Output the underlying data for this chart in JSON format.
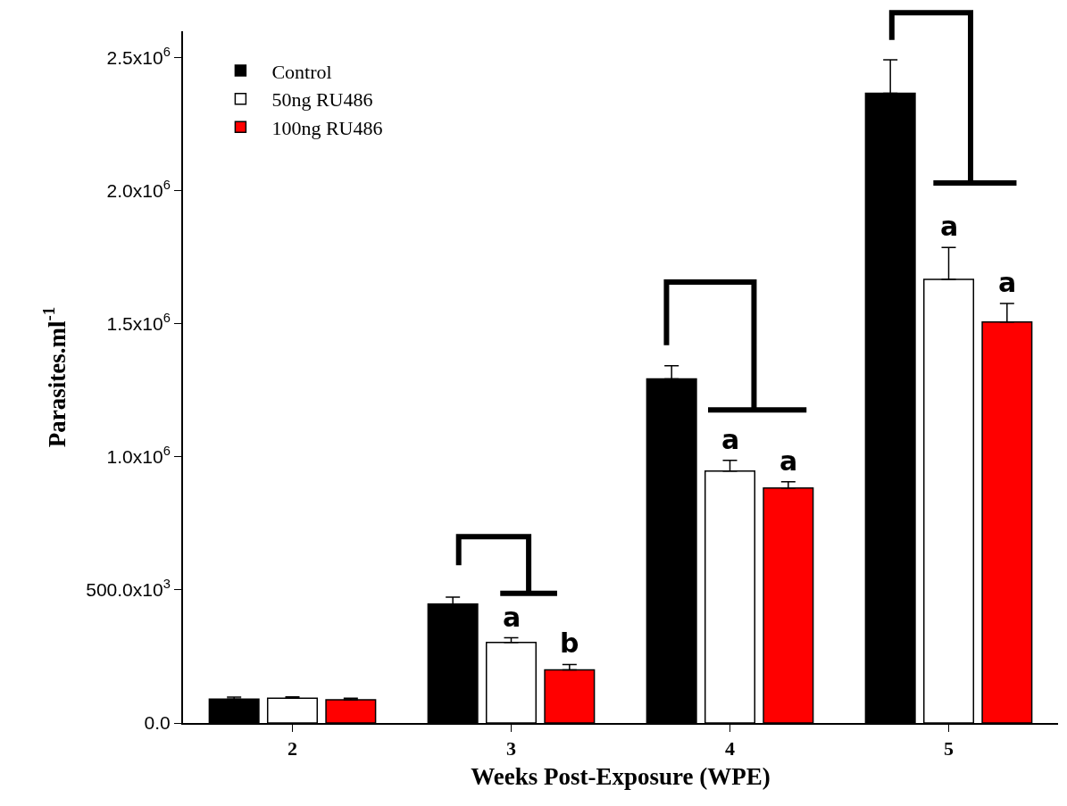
{
  "chart_data": {
    "type": "bar",
    "xlabel": "Weeks Post-Exposure (WPE)",
    "ylabel": "Parasites.ml$^{-1}$",
    "categories": [
      "2",
      "3",
      "4",
      "5"
    ],
    "series": [
      {
        "name": "Control",
        "color": "#000000",
        "values": [
          90000,
          447000,
          1293000,
          2367000
        ],
        "errors": [
          [
            90000,
            97000
          ],
          [
            447000,
            473000
          ],
          [
            1293000,
            1343000
          ],
          [
            2367000,
            2493000
          ]
        ]
      },
      {
        "name": "50ng RU486",
        "color": "#ffffff",
        "values": [
          93000,
          303000,
          947000,
          1667000
        ],
        "value_labels": [
          null,
          "a",
          "a",
          "a"
        ],
        "errors": [
          [
            93000,
            98000
          ],
          [
            303000,
            320000
          ],
          [
            947000,
            987000
          ],
          [
            1667000,
            1787000
          ]
        ]
      },
      {
        "name": "100ng RU486",
        "color": "#ff0000",
        "values": [
          87000,
          200000,
          883000,
          1507000
        ],
        "value_labels": [
          null,
          "b",
          "a",
          "a"
        ],
        "errors": [
          [
            87000,
            93000
          ],
          [
            200000,
            220000
          ],
          [
            883000,
            907000
          ],
          [
            1507000,
            1577000
          ]
        ]
      }
    ],
    "ylim": [
      0,
      2600000
    ],
    "yticks": [
      {
        "value": 0,
        "label": "0.0"
      },
      {
        "value": 500000,
        "label": "500.0x10$^{3}$"
      },
      {
        "value": 1000000,
        "label": "1.0x10$^{6}$"
      },
      {
        "value": 1500000,
        "label": "1.5x10$^{6}$"
      },
      {
        "value": 2000000,
        "label": "2.0x10$^{6}$"
      },
      {
        "value": 2500000,
        "label": "2.5x10$^{6}$"
      }
    ],
    "legend": "top left",
    "grid": false
  }
}
